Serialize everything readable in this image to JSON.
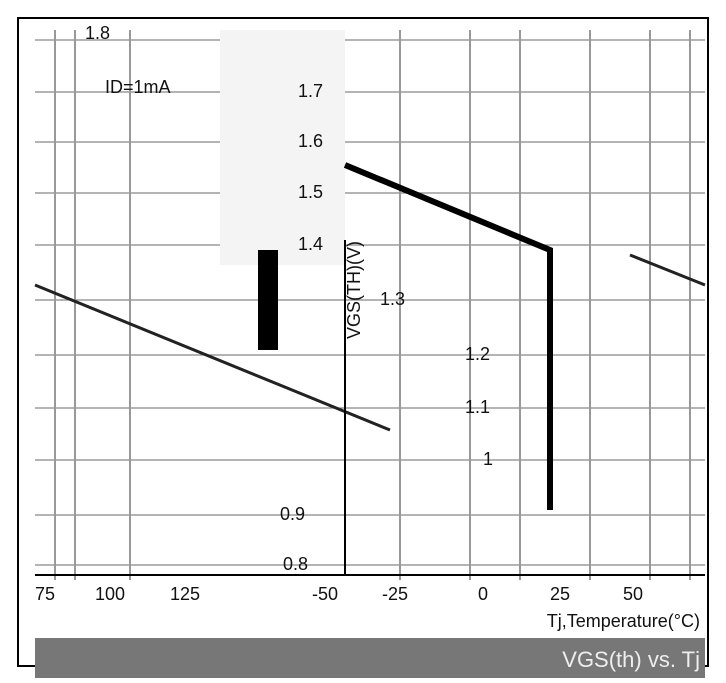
{
  "annotation": "ID=1mA",
  "y_axis_title": "VGS(TH)(V)",
  "y_axis_labels": [
    "1.8",
    "1.7",
    "1.6",
    "1.5",
    "1.4",
    "1.3",
    "1.2",
    "1.1",
    "1",
    "0.9",
    "0.8"
  ],
  "x_axis_labels": [
    "75",
    "100",
    "125",
    "-50",
    "-25",
    "0",
    "25",
    "50"
  ],
  "x_axis_title": "Tj,Temperature(°C)",
  "caption": "VGS(th) vs. Tj"
}
